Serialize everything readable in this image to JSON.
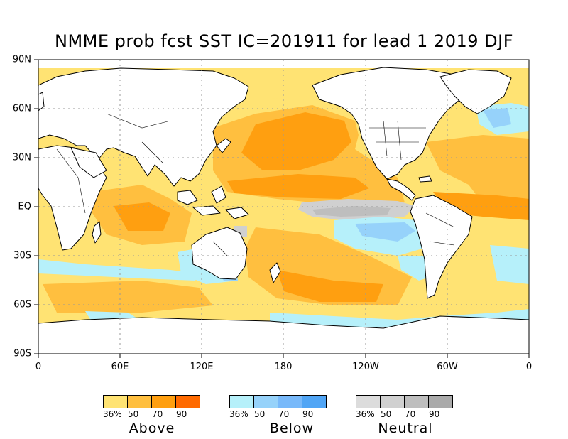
{
  "title": "NMME prob fcst SST IC=201911 for lead 1 2019 DJF",
  "y_axis": [
    "90N",
    "60N",
    "30N",
    "EQ",
    "30S",
    "60S",
    "90S"
  ],
  "x_axis": [
    "0",
    "60E",
    "120E",
    "180",
    "120W",
    "60W",
    "0"
  ],
  "legends": [
    {
      "name": "Above",
      "ticks": [
        "36%",
        "50",
        "70",
        "90"
      ],
      "colors": [
        "#ffe373",
        "#ffbf3f",
        "#ff9f10",
        "#ff6a00"
      ]
    },
    {
      "name": "Below",
      "ticks": [
        "36%",
        "50",
        "70",
        "90"
      ],
      "colors": [
        "#b6f0fa",
        "#96d2fa",
        "#78b9fa",
        "#50a5f5"
      ]
    },
    {
      "name": "Neutral",
      "ticks": [
        "36%",
        "50",
        "70",
        "90"
      ],
      "colors": [
        "#dcdcdc",
        "#d0d0d0",
        "#bebebe",
        "#aaaaaa"
      ]
    }
  ],
  "colors": {
    "land": "#ffffff",
    "coast": "#000000",
    "grid": "#9a9a9a"
  }
}
